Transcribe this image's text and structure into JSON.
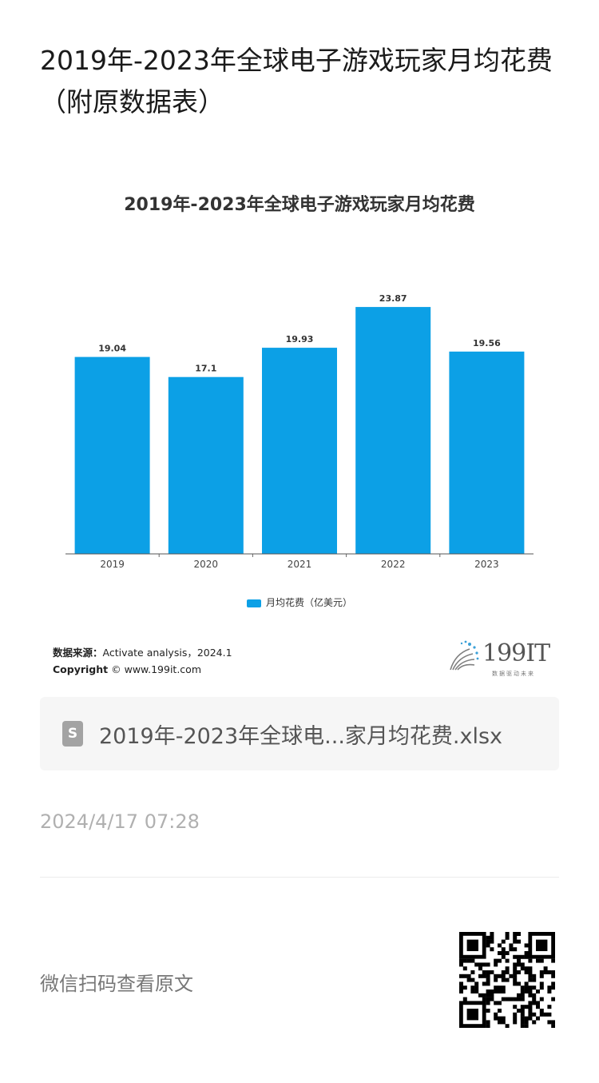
{
  "article": {
    "title": "2019年-2023年全球电子游戏玩家月均花费（附原数据表）"
  },
  "chart_data": {
    "type": "bar",
    "title": "2019年-2023年全球电子游戏玩家月均花费",
    "categories": [
      "2019",
      "2020",
      "2021",
      "2022",
      "2023"
    ],
    "series": [
      {
        "name": "月均花费（亿美元）",
        "values": [
          19.04,
          17.1,
          19.93,
          23.87,
          19.56
        ],
        "color": "#0ca0e6"
      }
    ],
    "data_labels": [
      "19.04",
      "17.1",
      "19.93",
      "23.87",
      "19.56"
    ],
    "ylim": [
      0,
      25.5
    ],
    "grid": false,
    "legend_position": "bottom"
  },
  "source": {
    "label": "数据来源：",
    "text": "Activate analysis，2024.1",
    "copyright_label": "Copyright",
    "copyright_text": "© www.199it.com"
  },
  "logo": {
    "text": "199IT",
    "tagline": "数据驱动未来"
  },
  "attachment": {
    "icon": "spreadsheet-file-icon",
    "icon_letter": "S",
    "file_name": "2019年-2023年全球电...家月均花费.xlsx"
  },
  "timestamp": "2024/4/17 07:28",
  "qr": {
    "hint": "微信扫码查看原文",
    "icon": "qr-code-icon"
  },
  "colors": {
    "bar": "#0ca0e6",
    "text_muted": "#b0b0b0"
  }
}
